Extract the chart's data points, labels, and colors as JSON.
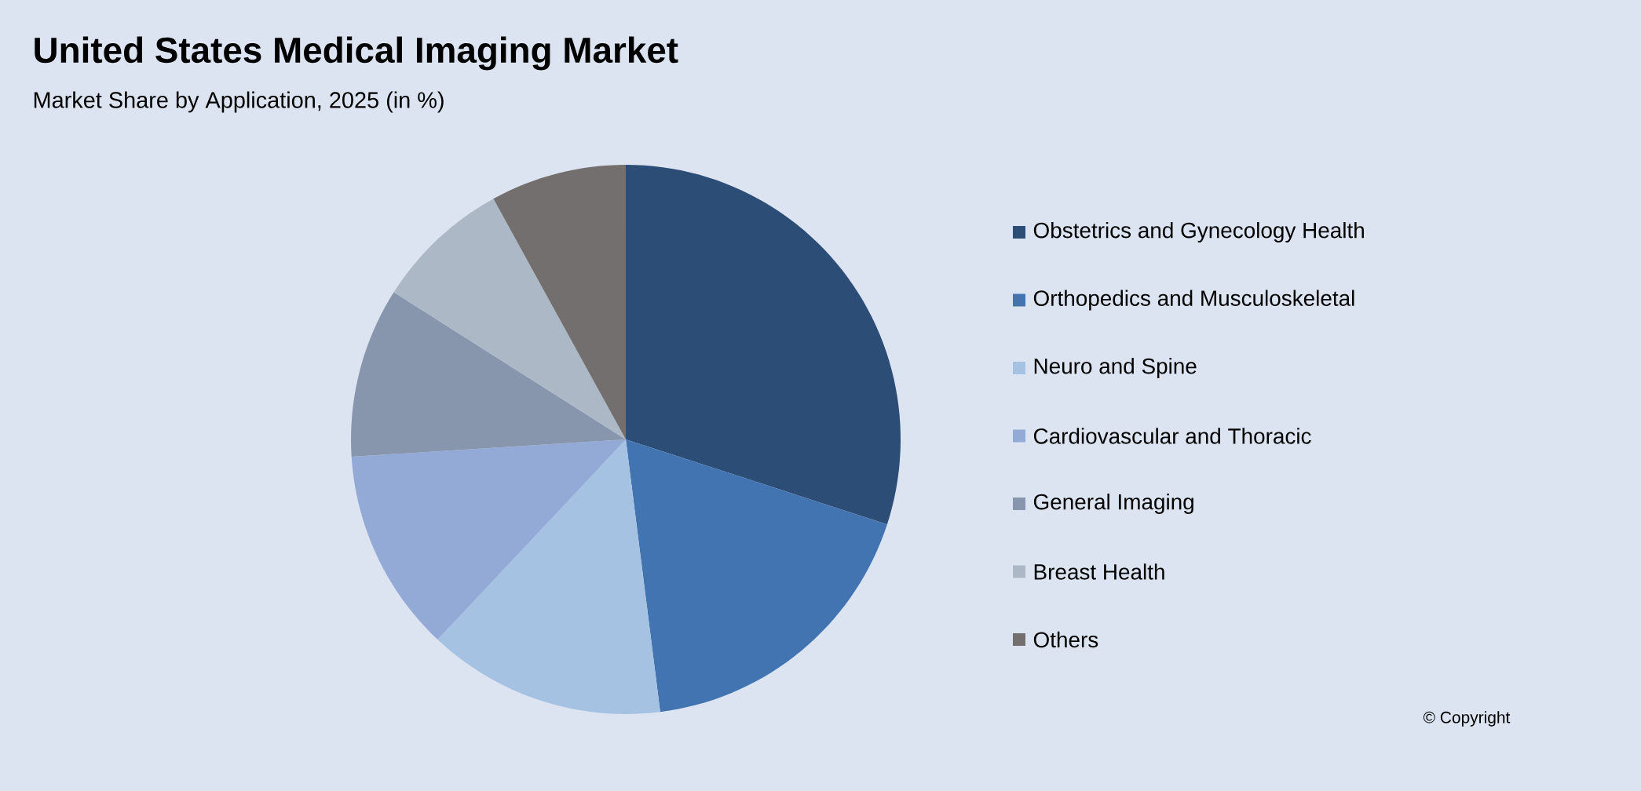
{
  "chart_data": {
    "type": "pie",
    "title": "United States Medical Imaging Market",
    "subtitle": "Market Share by Application, 2025 (in %)",
    "categories": [
      "Obstetrics and Gynecology Health",
      "Orthopedics and Musculoskeletal",
      "Neuro and Spine",
      "Cardiovascular and Thoracic",
      "General Imaging",
      "Breast Health",
      "Others"
    ],
    "values": [
      30,
      18,
      14,
      12,
      10,
      8,
      8
    ],
    "colors": [
      "#2c4d75",
      "#4174b0",
      "#a6c2e2",
      "#93a9d6",
      "#8796ad",
      "#adb8c7",
      "#736f6e"
    ],
    "legend": "right",
    "annotations": [
      "© Copyright"
    ]
  }
}
